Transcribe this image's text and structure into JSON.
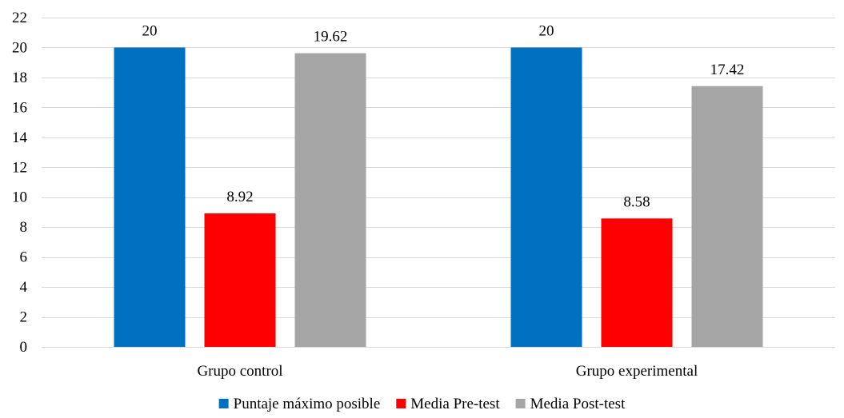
{
  "chart_data": {
    "type": "bar",
    "categories": [
      "Grupo control",
      "Grupo experimental"
    ],
    "series": [
      {
        "name": "Puntaje máximo posible",
        "values": [
          20,
          20
        ],
        "labels": [
          "20",
          "20"
        ],
        "color": "#0070C0"
      },
      {
        "name": "Media Pre-test",
        "values": [
          8.92,
          8.58
        ],
        "labels": [
          "8.92",
          "8.58"
        ],
        "color": "#FF0000"
      },
      {
        "name": "Media Post-test",
        "values": [
          19.62,
          17.42
        ],
        "labels": [
          "19.62",
          "17.42"
        ],
        "color": "#A5A5A5"
      }
    ],
    "ylim": [
      0,
      22
    ],
    "yticks": [
      "0",
      "2",
      "4",
      "6",
      "8",
      "10",
      "12",
      "14",
      "16",
      "18",
      "20",
      "22"
    ],
    "grid": true,
    "legend": "bottom"
  }
}
